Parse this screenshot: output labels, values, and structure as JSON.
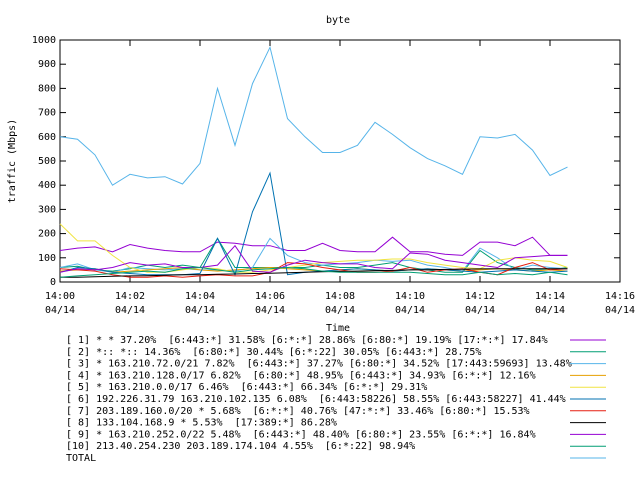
{
  "chart_data": {
    "type": "line",
    "title": "byte",
    "xlabel": "Time",
    "ylabel": "traffic (Mbps)",
    "xlim": [
      "14:00:00",
      "14:16:00"
    ],
    "xticks": [
      {
        "value": "14:00:00",
        "label": "14:00",
        "sublabel": "04/14"
      },
      {
        "value": "14:02:00",
        "label": "14:02",
        "sublabel": "04/14"
      },
      {
        "value": "14:04:00",
        "label": "14:04",
        "sublabel": "04/14"
      },
      {
        "value": "14:06:00",
        "label": "14:06",
        "sublabel": "04/14"
      },
      {
        "value": "14:08:00",
        "label": "14:08",
        "sublabel": "04/14"
      },
      {
        "value": "14:10:00",
        "label": "14:10",
        "sublabel": "04/14"
      },
      {
        "value": "14:12:00",
        "label": "14:12",
        "sublabel": "04/14"
      },
      {
        "value": "14:14:00",
        "label": "14:14",
        "sublabel": "04/14"
      },
      {
        "value": "14:16:00",
        "label": "14:16",
        "sublabel": "04/14"
      }
    ],
    "ylim": [
      0,
      1000
    ],
    "yticks": [
      0,
      100,
      200,
      300,
      400,
      500,
      600,
      700,
      800,
      900,
      1000
    ],
    "x": [
      "14:00:00",
      "14:00:30",
      "14:01:00",
      "14:01:30",
      "14:02:00",
      "14:02:30",
      "14:03:00",
      "14:03:30",
      "14:04:00",
      "14:04:30",
      "14:05:00",
      "14:05:30",
      "14:06:00",
      "14:06:30",
      "14:07:00",
      "14:07:30",
      "14:08:00",
      "14:08:30",
      "14:09:00",
      "14:09:30",
      "14:10:00",
      "14:10:30",
      "14:11:00",
      "14:11:30",
      "14:12:00",
      "14:12:30",
      "14:13:00",
      "14:13:30",
      "14:14:00",
      "14:14:30"
    ],
    "series": [
      {
        "name": "[ 1] * * 37.20%  [6:443:*] 31.58% [6:*:*] 28.86% [6:80:*] 19.19% [17:*:*] 17.84%",
        "color": "#9400d3",
        "values": [
          130,
          140,
          145,
          125,
          155,
          140,
          130,
          125,
          125,
          165,
          160,
          150,
          150,
          130,
          130,
          160,
          130,
          125,
          125,
          185,
          125,
          125,
          115,
          110,
          165,
          165,
          150,
          185,
          110,
          110
        ]
      },
      {
        "name": "[ 2] *:: *:: 14.36%  [6:80:*] 30.44% [6:*:22] 30.05% [6:443:*] 28.75%",
        "color": "#009e73",
        "values": [
          60,
          65,
          50,
          45,
          55,
          70,
          60,
          70,
          60,
          180,
          60,
          60,
          60,
          60,
          60,
          70,
          60,
          60,
          70,
          80,
          60,
          50,
          40,
          40,
          130,
          80,
          60,
          50,
          50,
          60
        ]
      },
      {
        "name": "[ 3] * 163.210.72.0/21 7.82%  [6:443:*] 37.27% [6:80:*] 34.52% [17:443:59693] 13.48%",
        "color": "#56b4e9",
        "values": [
          60,
          75,
          50,
          40,
          60,
          55,
          50,
          55,
          50,
          50,
          45,
          60,
          180,
          110,
          80,
          70,
          75,
          80,
          90,
          85,
          90,
          70,
          60,
          45,
          140,
          100,
          50,
          70,
          60,
          55
        ]
      },
      {
        "name": "[ 4] * 163.210.128.0/17 6.82%  [6:80:*] 48.95% [6:443:*] 34.93% [6:*:*] 12.16%",
        "color": "#e69f00",
        "values": [
          45,
          50,
          55,
          40,
          45,
          50,
          55,
          60,
          50,
          45,
          50,
          55,
          60,
          55,
          50,
          45,
          50,
          55,
          50,
          45,
          50,
          55,
          50,
          45,
          50,
          55,
          50,
          45,
          50,
          45
        ]
      },
      {
        "name": "[ 5] * 163.210.0.0/17 6.46%  [6:443:*] 66.34% [6:*:*] 29.31%",
        "color": "#f0e442",
        "values": [
          240,
          170,
          170,
          110,
          60,
          40,
          40,
          50,
          60,
          55,
          40,
          40,
          50,
          60,
          70,
          80,
          85,
          90,
          90,
          95,
          95,
          80,
          70,
          60,
          55,
          90,
          100,
          90,
          85,
          60
        ]
      },
      {
        "name": "[ 6] 192.226.31.79 163.210.102.135 6.08%  [6:443:58226] 58.55% [6:443:58227] 41.44%",
        "color": "#0072b2",
        "values": [
          40,
          60,
          55,
          40,
          35,
          30,
          30,
          30,
          35,
          180,
          30,
          290,
          450,
          30,
          40,
          45,
          50,
          55,
          50,
          45,
          50,
          55,
          50,
          45,
          40,
          45,
          50,
          45,
          40,
          45
        ]
      },
      {
        "name": "[ 7] 203.189.160.0/20 * 5.68%  [6:*:*] 40.76% [47:*:*] 33.46% [6:80:*] 15.53%",
        "color": "#e51e10",
        "values": [
          55,
          50,
          45,
          30,
          20,
          20,
          25,
          20,
          25,
          30,
          25,
          25,
          40,
          80,
          75,
          60,
          50,
          40,
          40,
          45,
          60,
          40,
          50,
          55,
          40,
          30,
          60,
          80,
          50,
          55
        ]
      },
      {
        "name": "[ 8] 133.104.168.9 * 5.53%  [17:389:*] 86.28%",
        "color": "#000000",
        "values": [
          20,
          20,
          22,
          24,
          25,
          26,
          28,
          30,
          30,
          32,
          33,
          35,
          36,
          38,
          40,
          42,
          44,
          45,
          47,
          48,
          50,
          50,
          52,
          53,
          54,
          55,
          55,
          55,
          55,
          55
        ]
      },
      {
        "name": "[ 9] * 163.210.252.0/22 5.48%  [6:443:*] 48.40% [6:80:*] 23.55% [6:*:*] 16.84%",
        "color": "#9400d3",
        "values": [
          40,
          55,
          50,
          60,
          80,
          70,
          75,
          60,
          60,
          70,
          150,
          45,
          40,
          70,
          90,
          80,
          75,
          75,
          60,
          55,
          120,
          115,
          90,
          80,
          70,
          60,
          100,
          105,
          110,
          110
        ]
      },
      {
        "name": "[10] 213.40.254.230 203.189.174.104 4.55%  [6:*:22] 98.94%",
        "color": "#009e73",
        "values": [
          20,
          25,
          30,
          35,
          40,
          45,
          40,
          55,
          60,
          50,
          40,
          50,
          55,
          60,
          55,
          45,
          40,
          40,
          40,
          40,
          40,
          35,
          30,
          30,
          40,
          30,
          35,
          30,
          40,
          30
        ]
      },
      {
        "name": "TOTAL",
        "color": "#56b4e9",
        "values": [
          600,
          590,
          525,
          400,
          445,
          430,
          435,
          405,
          490,
          800,
          565,
          820,
          970,
          675,
          600,
          535,
          535,
          565,
          660,
          610,
          555,
          510,
          480,
          445,
          600,
          595,
          610,
          545,
          440,
          475
        ]
      }
    ]
  }
}
